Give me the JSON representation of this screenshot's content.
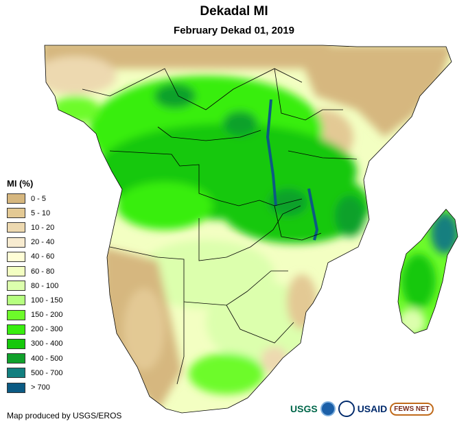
{
  "header": {
    "title": "Dekadal MI",
    "subtitle": "February Dekad 01, 2019"
  },
  "legend": {
    "title": "MI (%)",
    "items": [
      {
        "label": "0 - 5",
        "color": "#d6b77f"
      },
      {
        "label": "5 - 10",
        "color": "#e3c994"
      },
      {
        "label": "10 - 20",
        "color": "#edd9b0"
      },
      {
        "label": "20 - 40",
        "color": "#f7ebd0"
      },
      {
        "label": "40 - 60",
        "color": "#fffed6"
      },
      {
        "label": "60 - 80",
        "color": "#f3ffc2"
      },
      {
        "label": "80 - 100",
        "color": "#dcffad"
      },
      {
        "label": "100 - 150",
        "color": "#b6ff80"
      },
      {
        "label": "150 - 200",
        "color": "#6dfb2a"
      },
      {
        "label": "200 - 300",
        "color": "#39ee10"
      },
      {
        "label": "300 - 400",
        "color": "#16c80b"
      },
      {
        "label": "400 - 500",
        "color": "#10a12b"
      },
      {
        "label": "500 - 700",
        "color": "#137f7f"
      },
      {
        "label": "> 700",
        "color": "#0b5a83"
      }
    ]
  },
  "footer": {
    "credit": "Map produced by USGS/EROS"
  },
  "logos": {
    "usgs": "USGS",
    "usaid": "USAID",
    "fews": "FEWS NET"
  }
}
